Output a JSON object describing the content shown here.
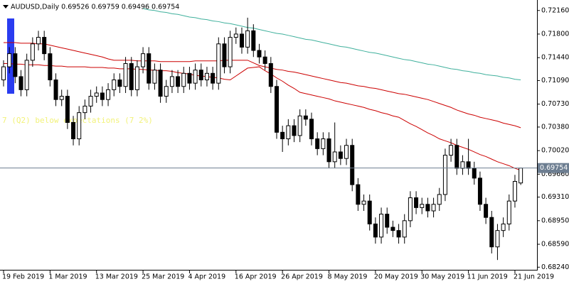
{
  "chart_data": {
    "type": "candlestick",
    "title": "AUDUSD,Daily  0.69526 0.69759 0.69496 0.69754",
    "annotation": "7 (Q2) below expectations (7 2%)",
    "categories": [
      "19 Feb 2019",
      null,
      null,
      null,
      null,
      null,
      null,
      null,
      "1 Mar 2019",
      null,
      null,
      null,
      null,
      null,
      null,
      null,
      "13 Mar 2019",
      null,
      null,
      null,
      null,
      null,
      null,
      null,
      "25 Mar 2019",
      null,
      null,
      null,
      null,
      null,
      null,
      null,
      "4 Apr 2019",
      null,
      null,
      null,
      null,
      null,
      null,
      null,
      "16 Apr 2019",
      null,
      null,
      null,
      null,
      null,
      null,
      null,
      "26 Apr 2019",
      null,
      null,
      null,
      null,
      null,
      null,
      null,
      "8 May 2019",
      null,
      null,
      null,
      null,
      null,
      null,
      null,
      "20 May 2019",
      null,
      null,
      null,
      null,
      null,
      null,
      null,
      "30 May 2019",
      null,
      null,
      null,
      null,
      null,
      null,
      null,
      "11 Jun 2019",
      null,
      null,
      null,
      null,
      null,
      null,
      null,
      "21 Jun 2019",
      null
    ],
    "open": [
      0.711,
      0.713,
      0.715,
      0.7115,
      0.7095,
      0.714,
      0.7165,
      0.7175,
      0.715,
      0.711,
      0.708,
      0.7085,
      0.7045,
      0.702,
      0.706,
      0.707,
      0.7085,
      0.709,
      0.708,
      0.7095,
      0.711,
      0.71,
      0.7135,
      0.7095,
      0.713,
      0.715,
      0.7105,
      0.7125,
      0.7085,
      0.71,
      0.7115,
      0.71,
      0.712,
      0.7105,
      0.7125,
      0.711,
      0.712,
      0.7105,
      0.7165,
      0.713,
      0.7175,
      0.718,
      0.716,
      0.7185,
      0.7155,
      0.7145,
      0.7135,
      0.71,
      0.703,
      0.702,
      0.704,
      0.7025,
      0.7055,
      0.705,
      0.702,
      0.7005,
      0.702,
      0.6985,
      0.7,
      0.699,
      0.701,
      0.695,
      0.692,
      0.6925,
      0.689,
      0.687,
      0.6905,
      0.6885,
      0.688,
      0.687,
      0.6895,
      0.693,
      0.6915,
      0.692,
      0.691,
      0.692,
      0.6935,
      0.6995,
      0.701,
      0.6975,
      0.6985,
      0.6975,
      0.696,
      0.692,
      0.69,
      0.6855,
      0.688,
      0.689,
      0.6925,
      0.69526
    ],
    "high": [
      0.714,
      0.716,
      0.716,
      0.7125,
      0.715,
      0.7175,
      0.7185,
      0.7185,
      0.716,
      0.712,
      0.7095,
      0.7095,
      0.7055,
      0.707,
      0.708,
      0.7095,
      0.71,
      0.71,
      0.7105,
      0.712,
      0.712,
      0.7145,
      0.7145,
      0.714,
      0.716,
      0.716,
      0.7135,
      0.7135,
      0.711,
      0.7125,
      0.7125,
      0.713,
      0.713,
      0.7135,
      0.7135,
      0.713,
      0.713,
      0.7175,
      0.7175,
      0.7185,
      0.719,
      0.719,
      0.7205,
      0.7195,
      0.7165,
      0.7155,
      0.7145,
      0.711,
      0.704,
      0.705,
      0.705,
      0.7065,
      0.7065,
      0.706,
      0.703,
      0.703,
      0.703,
      0.7045,
      0.701,
      0.702,
      0.702,
      0.696,
      0.6935,
      0.6935,
      0.69,
      0.6915,
      0.6915,
      0.6895,
      0.689,
      0.6905,
      0.694,
      0.694,
      0.693,
      0.693,
      0.693,
      0.6945,
      0.7005,
      0.702,
      0.702,
      0.6995,
      0.702,
      0.6985,
      0.697,
      0.693,
      0.691,
      0.689,
      0.69,
      0.6935,
      0.6965,
      0.69759
    ],
    "low": [
      0.71,
      0.712,
      0.7105,
      0.7085,
      0.7085,
      0.713,
      0.7155,
      0.714,
      0.71,
      0.707,
      0.707,
      0.7035,
      0.701,
      0.701,
      0.705,
      0.706,
      0.7075,
      0.707,
      0.707,
      0.7085,
      0.709,
      0.709,
      0.7085,
      0.7085,
      0.712,
      0.7095,
      0.7095,
      0.7075,
      0.7075,
      0.709,
      0.709,
      0.709,
      0.7095,
      0.7095,
      0.71,
      0.71,
      0.7095,
      0.7095,
      0.712,
      0.712,
      0.7165,
      0.715,
      0.715,
      0.7145,
      0.7135,
      0.7125,
      0.709,
      0.702,
      0.7,
      0.701,
      0.7015,
      0.7015,
      0.704,
      0.701,
      0.6995,
      0.6995,
      0.6975,
      0.6975,
      0.698,
      0.698,
      0.694,
      0.691,
      0.691,
      0.688,
      0.686,
      0.686,
      0.6875,
      0.687,
      0.686,
      0.686,
      0.6885,
      0.6905,
      0.6905,
      0.69,
      0.69,
      0.691,
      0.6925,
      0.6985,
      0.6965,
      0.6965,
      0.6965,
      0.695,
      0.691,
      0.689,
      0.6845,
      0.6835,
      0.687,
      0.688,
      0.6915,
      0.69496
    ],
    "close": [
      0.713,
      0.715,
      0.7115,
      0.7095,
      0.714,
      0.7165,
      0.7175,
      0.715,
      0.711,
      0.708,
      0.7085,
      0.7045,
      0.702,
      0.706,
      0.707,
      0.7085,
      0.709,
      0.708,
      0.7095,
      0.711,
      0.71,
      0.7135,
      0.7095,
      0.713,
      0.715,
      0.7105,
      0.7125,
      0.7085,
      0.71,
      0.7115,
      0.71,
      0.712,
      0.7105,
      0.7125,
      0.711,
      0.712,
      0.7105,
      0.7165,
      0.713,
      0.7175,
      0.718,
      0.716,
      0.7185,
      0.7155,
      0.7145,
      0.7135,
      0.71,
      0.703,
      0.702,
      0.704,
      0.7025,
      0.7055,
      0.705,
      0.702,
      0.7005,
      0.702,
      0.6985,
      0.7,
      0.699,
      0.701,
      0.695,
      0.692,
      0.6925,
      0.689,
      0.687,
      0.6905,
      0.6885,
      0.688,
      0.687,
      0.6895,
      0.693,
      0.6915,
      0.692,
      0.691,
      0.692,
      0.6935,
      0.6995,
      0.701,
      0.6975,
      0.6985,
      0.6975,
      0.696,
      0.692,
      0.69,
      0.6855,
      0.688,
      0.689,
      0.6925,
      0.6955,
      0.69754
    ],
    "up_color": "#ffffff",
    "down_color": "#000000",
    "wick_color": "#000000",
    "series": [
      {
        "color": "#cc0000",
        "values": [
          0.7167,
          0.7167,
          0.7167,
          0.7166,
          0.7166,
          0.7166,
          0.7165,
          0.7165,
          0.7163,
          0.7161,
          0.7159,
          0.7157,
          0.7155,
          0.7153,
          0.7151,
          0.7149,
          0.7147,
          0.7145,
          0.7142,
          0.714,
          0.714,
          0.714,
          0.714,
          0.7139,
          0.7139,
          0.7139,
          0.7139,
          0.7138,
          0.7138,
          0.7138,
          0.7138,
          0.7138,
          0.7138,
          0.7139,
          0.7139,
          0.7139,
          0.7139,
          0.7139,
          0.714,
          0.714,
          0.714,
          0.714,
          0.714,
          0.7136,
          0.7132,
          0.713,
          0.7128,
          0.7126,
          0.7125,
          0.7123,
          0.7122,
          0.712,
          0.7118,
          0.7116,
          0.7114,
          0.7112,
          0.711,
          0.7108,
          0.7106,
          0.7105,
          0.7103,
          0.7101,
          0.71,
          0.7098,
          0.7097,
          0.7095,
          0.7093,
          0.7091,
          0.7089,
          0.7088,
          0.7086,
          0.7084,
          0.7082,
          0.708,
          0.7077,
          0.7074,
          0.7071,
          0.7068,
          0.7064,
          0.7061,
          0.7058,
          0.7056,
          0.7053,
          0.7051,
          0.7049,
          0.7047,
          0.7044,
          0.7042,
          0.704,
          0.7037
        ]
      },
      {
        "color": "#cc0000",
        "values": [
          0.7135,
          0.7135,
          0.7134,
          0.7134,
          0.7133,
          0.7133,
          0.7133,
          0.7132,
          0.7132,
          0.7131,
          0.7131,
          0.713,
          0.713,
          0.713,
          0.713,
          0.7129,
          0.7129,
          0.7129,
          0.7128,
          0.7128,
          0.7127,
          0.7127,
          0.7127,
          0.7126,
          0.7126,
          0.7125,
          0.7125,
          0.7124,
          0.7124,
          0.7123,
          0.7121,
          0.712,
          0.7119,
          0.7117,
          0.7116,
          0.7115,
          0.7114,
          0.7113,
          0.7111,
          0.711,
          0.7116,
          0.7122,
          0.7128,
          0.7129,
          0.713,
          0.7124,
          0.7119,
          0.7113,
          0.7108,
          0.7102,
          0.7097,
          0.7091,
          0.7089,
          0.7087,
          0.7085,
          0.7083,
          0.7081,
          0.7078,
          0.7076,
          0.7074,
          0.7072,
          0.707,
          0.7068,
          0.7065,
          0.7063,
          0.706,
          0.7058,
          0.7055,
          0.7053,
          0.7048,
          0.7043,
          0.7039,
          0.7034,
          0.7029,
          0.7025,
          0.702,
          0.7017,
          0.7014,
          0.701,
          0.7007,
          0.7004,
          0.7,
          0.6996,
          0.6993,
          0.6989,
          0.6985,
          0.6982,
          0.6979,
          0.6975,
          0.6972
        ]
      },
      {
        "color": "#3fb09c",
        "values": [
          null,
          null,
          null,
          null,
          null,
          null,
          null,
          null,
          null,
          null,
          null,
          null,
          null,
          null,
          null,
          null,
          null,
          null,
          null,
          null,
          null,
          null,
          null,
          null,
          0.7219,
          0.7217,
          0.7216,
          0.7214,
          0.7213,
          0.7211,
          0.721,
          0.7208,
          0.7206,
          0.7205,
          0.7203,
          0.7202,
          0.72,
          0.7199,
          0.7197,
          0.7196,
          0.7194,
          0.7192,
          0.719,
          0.7189,
          0.7187,
          0.7185,
          0.7183,
          0.7181,
          0.718,
          0.7178,
          0.7176,
          0.7174,
          0.7172,
          0.7171,
          0.7169,
          0.7167,
          0.7165,
          0.7163,
          0.7161,
          0.716,
          0.7158,
          0.7156,
          0.7154,
          0.7152,
          0.7151,
          0.7149,
          0.7147,
          0.7145,
          0.7143,
          0.7141,
          0.714,
          0.7138,
          0.7136,
          0.7134,
          0.7133,
          0.7131,
          0.7129,
          0.7127,
          0.7126,
          0.7124,
          0.7123,
          0.7121,
          0.712,
          0.7118,
          0.7117,
          0.7116,
          0.7114,
          0.7113,
          0.7111,
          0.711
        ]
      }
    ],
    "current_price": 0.69754,
    "current_price_color": "#6d7e91",
    "ylim": [
      0.682,
      0.7232
    ],
    "yticks": [
      {
        "value": 0.7216,
        "label": "0.72160"
      },
      {
        "value": 0.718,
        "label": "0.71800"
      },
      {
        "value": 0.7144,
        "label": "0.71440"
      },
      {
        "value": 0.7109,
        "label": "0.71090"
      },
      {
        "value": 0.7073,
        "label": "0.70730"
      },
      {
        "value": 0.7038,
        "label": "0.70380"
      },
      {
        "value": 0.7002,
        "label": "0.70020"
      },
      {
        "value": 0.6966,
        "label": "0.69660"
      },
      {
        "value": 0.6931,
        "label": "0.69310"
      },
      {
        "value": 0.6895,
        "label": "0.68950"
      },
      {
        "value": 0.6859,
        "label": "0.68590"
      },
      {
        "value": 0.6824,
        "label": "0.68240"
      }
    ]
  }
}
